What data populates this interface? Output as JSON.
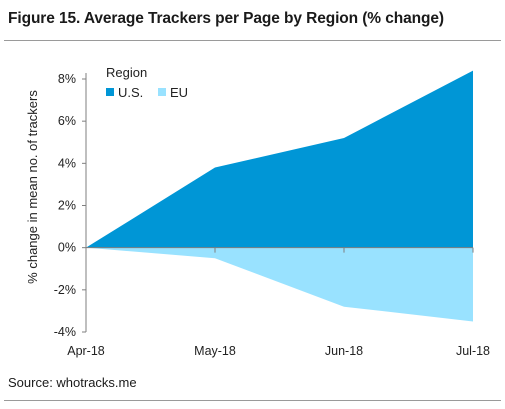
{
  "figure": {
    "title": "Figure 15. Average Trackers per Page by Region (% change)",
    "source": "Source: whotracks.me"
  },
  "chart_data": {
    "type": "area",
    "x": [
      "Apr-18",
      "May-18",
      "Jun-18",
      "Jul-18"
    ],
    "series": [
      {
        "name": "U.S.",
        "values": [
          0,
          3.8,
          5.2,
          8.4
        ],
        "color": "#0096d6"
      },
      {
        "name": "EU",
        "values": [
          0,
          -0.5,
          -2.8,
          -3.5
        ],
        "color": "#99e2ff"
      }
    ],
    "ylabel": "% change in mean no. of trackers",
    "ylim": [
      -4,
      8
    ],
    "yticks": [
      -4,
      -2,
      0,
      2,
      4,
      6,
      8
    ],
    "ytick_labels": [
      "-4%",
      "-2%",
      "0%",
      "2%",
      "4%",
      "6%",
      "8%"
    ],
    "legend": {
      "title": "Region",
      "position": "top-left"
    },
    "grid": false
  }
}
